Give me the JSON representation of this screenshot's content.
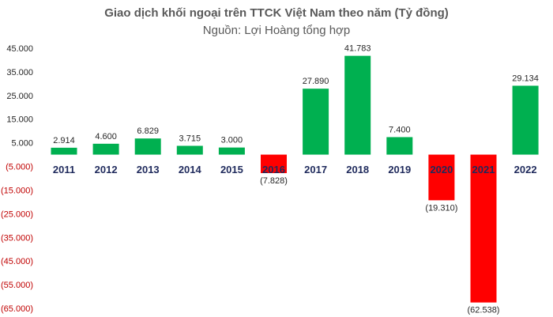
{
  "chart_data": {
    "type": "bar",
    "title": "Giao dịch khối ngoại trên TTCK Việt Nam theo năm (Tỷ đồng)",
    "subtitle": "Nguồn: Lợi Hoàng tổng hợp",
    "categories": [
      "2011",
      "2012",
      "2013",
      "2014",
      "2015",
      "2016",
      "2017",
      "2018",
      "2019",
      "2020",
      "2021",
      "2022"
    ],
    "values": [
      2914,
      4600,
      6829,
      3715,
      3000,
      -7828,
      27890,
      41783,
      7400,
      -19310,
      -62538,
      29134
    ],
    "data_labels": [
      "2.914",
      "4.600",
      "6.829",
      "3.715",
      "3.000",
      "(7.828)",
      "27.890",
      "41.783",
      "7.400",
      "(19.310)",
      "(62.538)",
      "29.134"
    ],
    "ylim": [
      -65000,
      45000
    ],
    "yticks": [
      45000,
      35000,
      25000,
      15000,
      5000,
      -5000,
      -15000,
      -25000,
      -35000,
      -45000,
      -55000,
      -65000
    ],
    "ytick_labels": [
      "45.000",
      "35.000",
      "25.000",
      "15.000",
      "5.000",
      "(5.000)",
      "(15.000)",
      "(25.000)",
      "(35.000)",
      "(45.000)",
      "(55.000)",
      "(65.000)"
    ],
    "grid": false,
    "colors": {
      "positive": "#00b050",
      "negative": "#ff0000",
      "positive_tick": "#262626",
      "negative_tick": "#c00000",
      "category": "#1f2a5c"
    }
  }
}
